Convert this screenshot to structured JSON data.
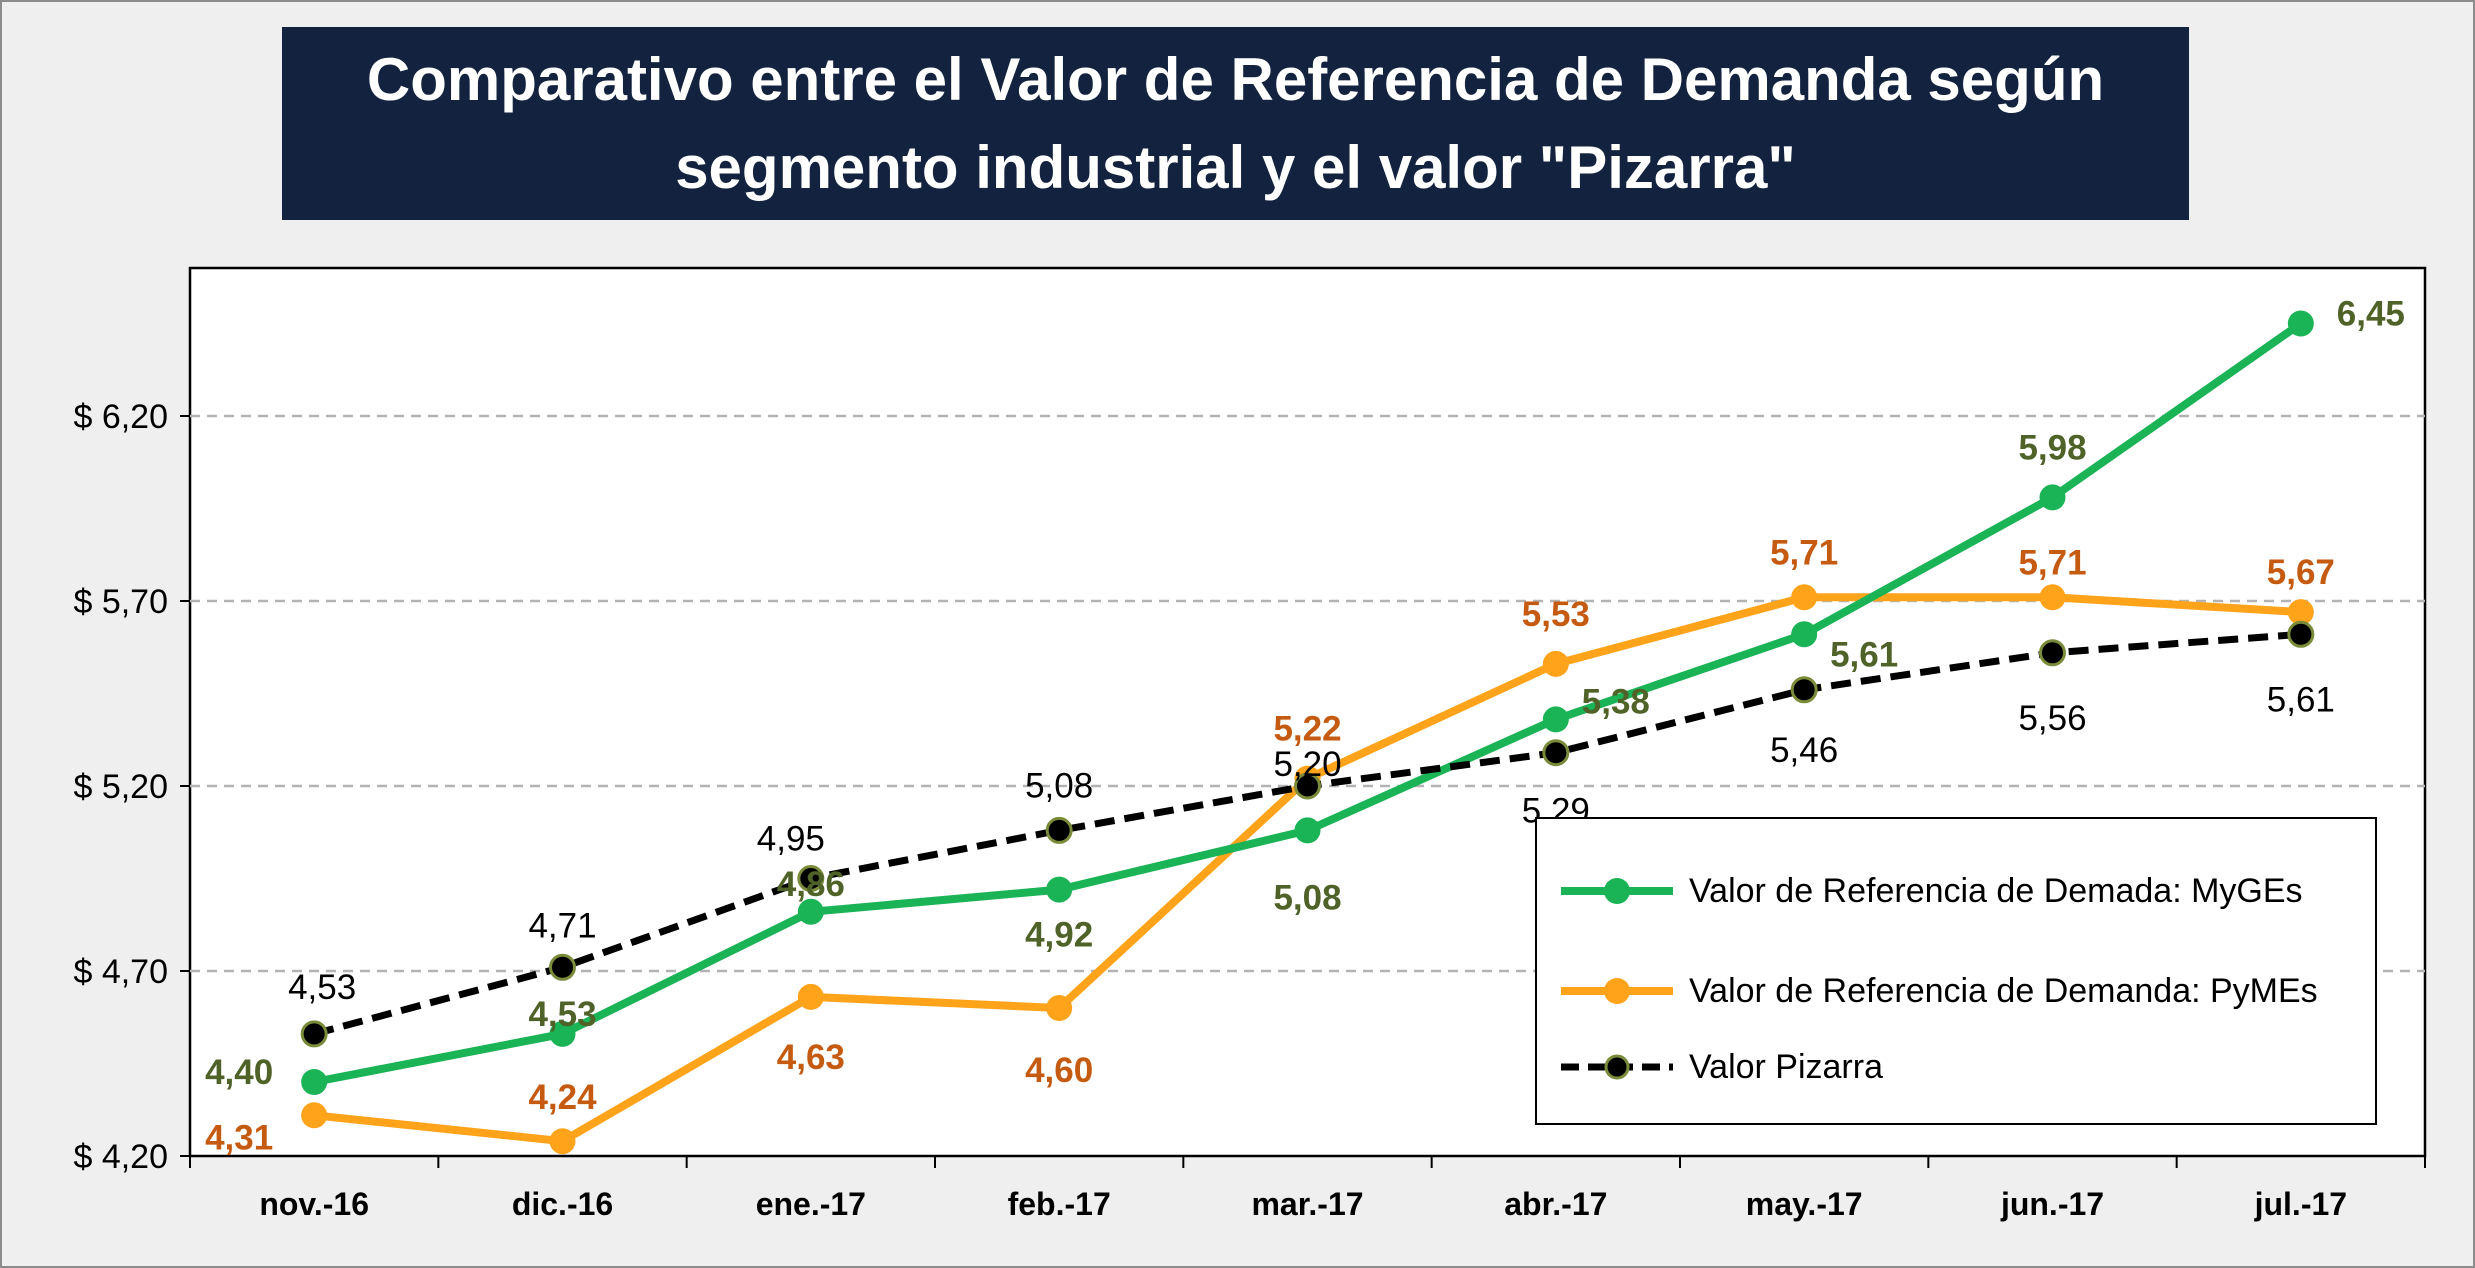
{
  "title_lines": [
    "Comparativo entre el Valor de Referencia de Demanda según",
    "segmento industrial y el valor \"Pizarra\""
  ],
  "colors": {
    "mygEs": "#1ab356",
    "pymes": "#ffa31a",
    "pizarra": "#000000",
    "title_bg": "#13233f",
    "mygEs_label": "#4f6228",
    "pymes_label": "#c55a11",
    "pizarra_label": "#000000"
  },
  "chart_data": {
    "type": "line",
    "title": "Comparativo entre el Valor de Referencia de Demanda según segmento industrial y el valor \"Pizarra\"",
    "categories": [
      "nov.-16",
      "dic.-16",
      "ene.-17",
      "feb.-17",
      "mar.-17",
      "abr.-17",
      "may.-17",
      "jun.-17",
      "jul.-17"
    ],
    "ylim": [
      4.2,
      6.6
    ],
    "yticks": [
      4.2,
      4.7,
      5.2,
      5.7,
      6.2
    ],
    "ytick_labels": [
      "$ 4,20",
      "$ 4,70",
      "$ 5,20",
      "$ 5,70",
      "$ 6,20"
    ],
    "grid": "horizontal dashed",
    "legend_position": "bottom-right",
    "series": [
      {
        "name": "Valor de Referencia de Demada:  MyGEs",
        "values": [
          4.4,
          4.53,
          4.86,
          4.92,
          5.08,
          5.38,
          5.61,
          5.98,
          6.45
        ],
        "labels": [
          "4,40",
          "4,53",
          "4,86",
          "4,92",
          "5,08",
          "5,38",
          "5,61",
          "5,98",
          "6,45"
        ]
      },
      {
        "name": "Valor de Referencia de Demanda:  PyMEs",
        "values": [
          4.31,
          4.24,
          4.63,
          4.6,
          5.22,
          5.53,
          5.71,
          5.71,
          5.67
        ],
        "labels": [
          "4,31",
          "4,24",
          "4,63",
          "4,60",
          "5,22",
          "5,53",
          "5,71",
          "5,71",
          "5,67"
        ]
      },
      {
        "name": "Valor Pizarra",
        "values": [
          4.53,
          4.71,
          4.95,
          5.08,
          5.2,
          5.29,
          5.46,
          5.56,
          5.61
        ],
        "labels": [
          "4,53",
          "4,71",
          "4,95",
          "5,08",
          "5,20",
          "5,29",
          "5,46",
          "5,56",
          "5,61"
        ]
      }
    ]
  }
}
